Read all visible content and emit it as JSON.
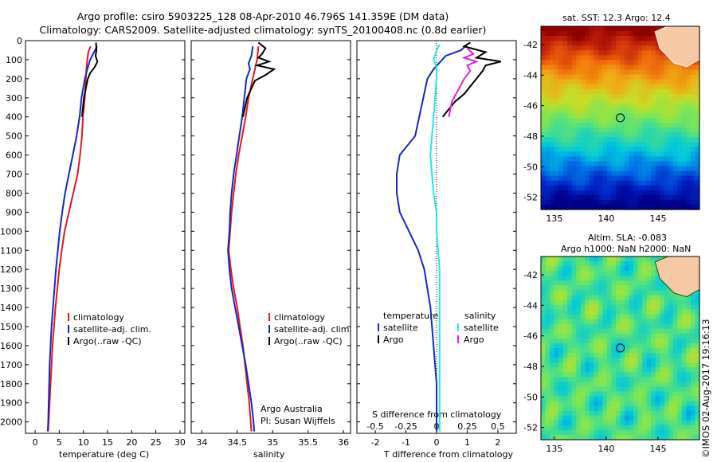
{
  "header": {
    "title_line1": "Argo profile: csiro 5903225_128 08-Apr-2010 46.796S 141.359E (DM data)",
    "title_line2": "Climatology: CARS2009. Satellite-adjusted climatology: synTS_20100408.nc (0.8d earlier)"
  },
  "colors": {
    "climatology": "#e0191e",
    "satellite": "#1327c8",
    "argo": "#000000",
    "sat_salinity": "#24e6e6",
    "argo_salinity": "#e01ee0"
  },
  "chart_data": [
    {
      "type": "line",
      "id": "temperature",
      "xlabel": "temperature (deg C)",
      "xlim": [
        -2,
        31
      ],
      "xticks": [
        0,
        5,
        10,
        15,
        20,
        25,
        30
      ],
      "ylim": [
        2060,
        0
      ],
      "yticks": [
        0,
        100,
        200,
        300,
        400,
        500,
        600,
        700,
        800,
        900,
        1000,
        1100,
        1200,
        1300,
        1400,
        1500,
        1600,
        1700,
        1800,
        1900,
        2000
      ],
      "legend": [
        "climatology",
        "satellite-adj. clim.",
        "Argo(..raw -QC)"
      ],
      "series": [
        {
          "name": "climatology",
          "color": "#e0191e",
          "points": [
            [
              11.5,
              30
            ],
            [
              11.0,
              60
            ],
            [
              10.8,
              100
            ],
            [
              10.6,
              150
            ],
            [
              10.5,
              200
            ],
            [
              10.3,
              300
            ],
            [
              9.9,
              400
            ],
            [
              9.7,
              500
            ],
            [
              9.3,
              600
            ],
            [
              8.8,
              700
            ],
            [
              7.9,
              800
            ],
            [
              7.0,
              900
            ],
            [
              6.1,
              1000
            ],
            [
              5.5,
              1100
            ],
            [
              5.0,
              1200
            ],
            [
              4.6,
              1300
            ],
            [
              4.2,
              1400
            ],
            [
              3.9,
              1500
            ],
            [
              3.6,
              1600
            ],
            [
              3.4,
              1700
            ],
            [
              3.2,
              1800
            ],
            [
              3.0,
              1900
            ],
            [
              2.8,
              2000
            ],
            [
              2.7,
              2050
            ]
          ]
        },
        {
          "name": "satellite-adj. clim.",
          "color": "#1327c8",
          "points": [
            [
              12.8,
              30
            ],
            [
              12.2,
              60
            ],
            [
              11.4,
              100
            ],
            [
              10.8,
              150
            ],
            [
              10.3,
              200
            ],
            [
              9.6,
              300
            ],
            [
              9.2,
              400
            ],
            [
              8.6,
              500
            ],
            [
              7.8,
              600
            ],
            [
              7.0,
              700
            ],
            [
              6.2,
              800
            ],
            [
              5.6,
              900
            ],
            [
              5.1,
              1000
            ],
            [
              4.7,
              1100
            ],
            [
              4.3,
              1200
            ],
            [
              4.0,
              1300
            ],
            [
              3.7,
              1400
            ],
            [
              3.4,
              1500
            ],
            [
              3.2,
              1600
            ],
            [
              3.0,
              1700
            ],
            [
              2.9,
              1800
            ],
            [
              2.8,
              1900
            ],
            [
              2.7,
              2000
            ],
            [
              2.6,
              2050
            ]
          ]
        },
        {
          "name": "Argo(..raw -QC)",
          "color": "#000000",
          "points": [
            [
              12.6,
              10
            ],
            [
              12.7,
              50
            ],
            [
              12.5,
              80
            ],
            [
              12.9,
              110
            ],
            [
              12.3,
              140
            ],
            [
              11.4,
              170
            ],
            [
              10.9,
              200
            ],
            [
              10.5,
              250
            ],
            [
              10.1,
              300
            ],
            [
              9.9,
              350
            ],
            [
              9.7,
              400
            ]
          ]
        }
      ]
    },
    {
      "type": "line",
      "id": "salinity",
      "xlabel": "salinity",
      "xlim": [
        33.85,
        36.1
      ],
      "xticks": [
        34,
        34.5,
        35,
        35.5,
        36
      ],
      "ylim": [
        2060,
        0
      ],
      "legend": [
        "climatology",
        "satellite-adj. clim.",
        "Argo(..raw -QC)"
      ],
      "annotation": [
        "Argo Australia",
        "PI: Susan Wijffels"
      ],
      "series": [
        {
          "name": "climatology",
          "color": "#e0191e",
          "points": [
            [
              34.8,
              30
            ],
            [
              34.78,
              100
            ],
            [
              34.72,
              200
            ],
            [
              34.66,
              300
            ],
            [
              34.62,
              400
            ],
            [
              34.57,
              500
            ],
            [
              34.52,
              600
            ],
            [
              34.48,
              700
            ],
            [
              34.45,
              800
            ],
            [
              34.42,
              900
            ],
            [
              34.4,
              1000
            ],
            [
              34.38,
              1100
            ],
            [
              34.41,
              1200
            ],
            [
              34.45,
              1300
            ],
            [
              34.5,
              1400
            ],
            [
              34.54,
              1500
            ],
            [
              34.58,
              1600
            ],
            [
              34.61,
              1700
            ],
            [
              34.64,
              1800
            ],
            [
              34.67,
              1900
            ],
            [
              34.69,
              2000
            ],
            [
              34.7,
              2050
            ]
          ]
        },
        {
          "name": "satellite-adj. clim.",
          "color": "#1327c8",
          "points": [
            [
              34.72,
              30
            ],
            [
              34.7,
              80
            ],
            [
              34.66,
              120
            ],
            [
              34.68,
              150
            ],
            [
              34.63,
              200
            ],
            [
              34.6,
              300
            ],
            [
              34.57,
              400
            ],
            [
              34.53,
              500
            ],
            [
              34.49,
              600
            ],
            [
              34.45,
              700
            ],
            [
              34.42,
              800
            ],
            [
              34.4,
              900
            ],
            [
              34.39,
              1000
            ],
            [
              34.37,
              1100
            ],
            [
              34.39,
              1200
            ],
            [
              34.42,
              1300
            ],
            [
              34.47,
              1400
            ],
            [
              34.52,
              1500
            ],
            [
              34.57,
              1600
            ],
            [
              34.62,
              1700
            ],
            [
              34.66,
              1800
            ],
            [
              34.7,
              1900
            ],
            [
              34.73,
              2000
            ],
            [
              34.74,
              2050
            ]
          ]
        },
        {
          "name": "Argo(..raw -QC)",
          "color": "#000000",
          "points": [
            [
              34.8,
              10
            ],
            [
              34.9,
              40
            ],
            [
              34.85,
              70
            ],
            [
              34.8,
              90
            ],
            [
              34.95,
              110
            ],
            [
              34.78,
              130
            ],
            [
              35.02,
              150
            ],
            [
              34.9,
              180
            ],
            [
              34.75,
              210
            ],
            [
              34.7,
              250
            ],
            [
              34.64,
              300
            ],
            [
              34.58,
              400
            ]
          ]
        }
      ]
    },
    {
      "type": "line",
      "id": "difference",
      "xlabel": "T difference from climatology",
      "xlabel2": "S difference from climatology",
      "xlim": [
        -2.6,
        2.6
      ],
      "xticks": [
        -2,
        -1,
        0,
        1,
        2
      ],
      "xticks2": [
        -0.5,
        -0.25,
        0,
        0.25,
        0.5
      ],
      "ylim": [
        2060,
        0
      ],
      "legend": {
        "temperature_header": "temperature",
        "salinity_header": "salinity",
        "t_satellite": "satellite",
        "t_argo": "Argo",
        "s_satellite": "satellite",
        "s_argo": "Argo"
      },
      "series": [
        {
          "name": "T satellite",
          "color": "#1327c8",
          "points": [
            [
              1.0,
              20
            ],
            [
              0.8,
              50
            ],
            [
              0.3,
              80
            ],
            [
              -0.1,
              150
            ],
            [
              -0.3,
              200
            ],
            [
              -0.5,
              350
            ],
            [
              -0.7,
              500
            ],
            [
              -1.2,
              600
            ],
            [
              -1.3,
              700
            ],
            [
              -1.3,
              800
            ],
            [
              -1.2,
              900
            ],
            [
              -0.9,
              1000
            ],
            [
              -0.6,
              1100
            ],
            [
              -0.4,
              1200
            ],
            [
              -0.2,
              1400
            ],
            [
              -0.1,
              1600
            ],
            [
              0,
              1800
            ],
            [
              0,
              2050
            ]
          ]
        },
        {
          "name": "T Argo",
          "color": "#000000",
          "points": [
            [
              1.1,
              10
            ],
            [
              0.9,
              30
            ],
            [
              1.6,
              60
            ],
            [
              1.3,
              90
            ],
            [
              2.1,
              110
            ],
            [
              1.6,
              130
            ],
            [
              1.5,
              160
            ],
            [
              1.3,
              200
            ],
            [
              0.9,
              280
            ],
            [
              0.6,
              320
            ],
            [
              0.3,
              380
            ],
            [
              0.2,
              400
            ]
          ]
        },
        {
          "name": "S satellite",
          "color": "#24e6e6",
          "points": [
            [
              0.1,
              20
            ],
            [
              0.0,
              50
            ],
            [
              -0.1,
              100
            ],
            [
              0.0,
              140
            ],
            [
              0.0,
              200
            ],
            [
              -0.05,
              300
            ],
            [
              -0.1,
              400
            ],
            [
              -0.15,
              500
            ],
            [
              -0.2,
              600
            ],
            [
              -0.15,
              700
            ],
            [
              -0.1,
              800
            ],
            [
              0.0,
              900
            ],
            [
              0.0,
              1000
            ],
            [
              0.05,
              1100
            ],
            [
              0.1,
              1200
            ],
            [
              0.1,
              1400
            ],
            [
              0.1,
              1600
            ],
            [
              0.1,
              1800
            ],
            [
              0.1,
              2050
            ]
          ]
        },
        {
          "name": "S Argo",
          "color": "#e01ee0",
          "points": [
            [
              1.0,
              40
            ],
            [
              1.2,
              70
            ],
            [
              0.9,
              90
            ],
            [
              1.3,
              110
            ],
            [
              1.0,
              130
            ],
            [
              1.1,
              160
            ],
            [
              0.9,
              200
            ],
            [
              0.7,
              260
            ],
            [
              0.5,
              320
            ],
            [
              0.4,
              400
            ]
          ]
        }
      ]
    },
    {
      "type": "heatmap",
      "id": "sst-map",
      "title": "sat. SST: 12.3  Argo: 12.4",
      "xticks": [
        135,
        140,
        145
      ],
      "yticks": [
        -42,
        -44,
        -46,
        -48,
        -50,
        -52
      ],
      "xlim": [
        133.7,
        149
      ],
      "ylim": [
        -52.8,
        -40.8
      ],
      "marker": {
        "lon": 141.359,
        "lat": -46.796
      }
    },
    {
      "type": "heatmap",
      "id": "sla-map",
      "title": "Altim. SLA: -0.083",
      "subtitle": "Argo h1000: NaN h2000: NaN",
      "xticks": [
        135,
        140,
        145
      ],
      "yticks": [
        -42,
        -44,
        -46,
        -48,
        -50,
        -52
      ],
      "xlim": [
        133.7,
        149
      ],
      "ylim": [
        -52.8,
        -40.8
      ],
      "marker": {
        "lon": 141.359,
        "lat": -46.796
      }
    }
  ],
  "footer": {
    "stamp": "©IMOS 02-Aug-2017 19:16:13"
  }
}
